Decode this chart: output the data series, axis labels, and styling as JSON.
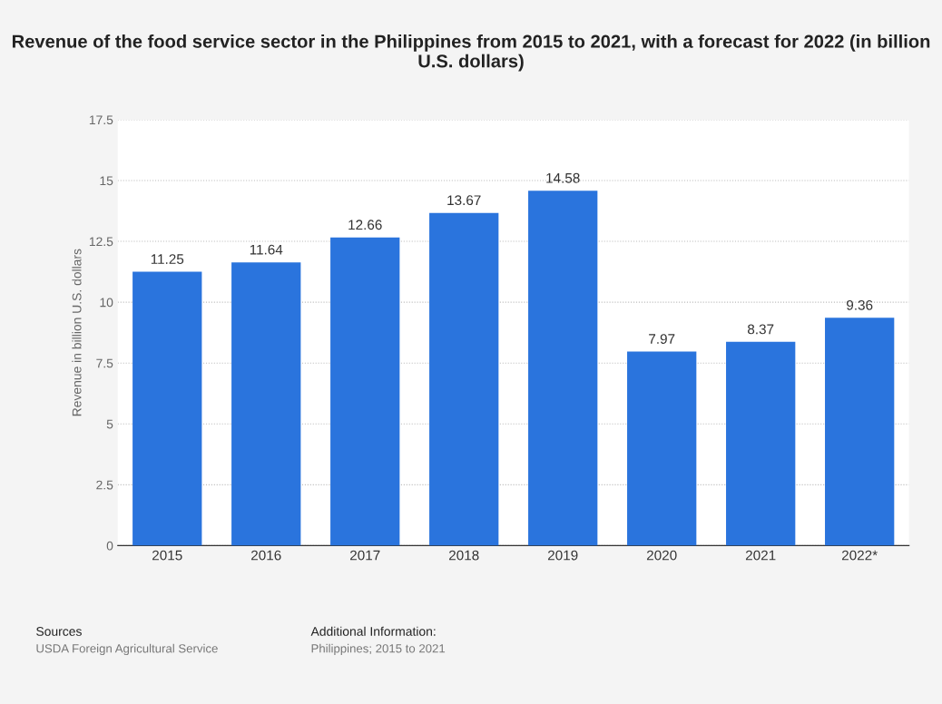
{
  "chart_data": {
    "type": "bar",
    "title": "Revenue of the food service sector in the Philippines from 2015 to 2021, with a forecast for 2022 (in billion U.S. dollars)",
    "ylabel": "Revenue in billion U.S. dollars",
    "categories": [
      "2015",
      "2016",
      "2017",
      "2018",
      "2019",
      "2020",
      "2021",
      "2022*"
    ],
    "values": [
      11.25,
      11.64,
      12.66,
      13.67,
      14.58,
      7.97,
      8.37,
      9.36
    ],
    "color": "#2a74dd",
    "data_labels": true,
    "ylim": [
      0,
      17.5
    ],
    "yticks": [
      0,
      2.5,
      5,
      7.5,
      10,
      12.5,
      15,
      17.5
    ],
    "grid": "y",
    "annotations": [
      "Sources",
      "USDA Foreign Agricultural Service",
      "Additional Information:",
      "Philippines; 2015 to 2021"
    ]
  }
}
